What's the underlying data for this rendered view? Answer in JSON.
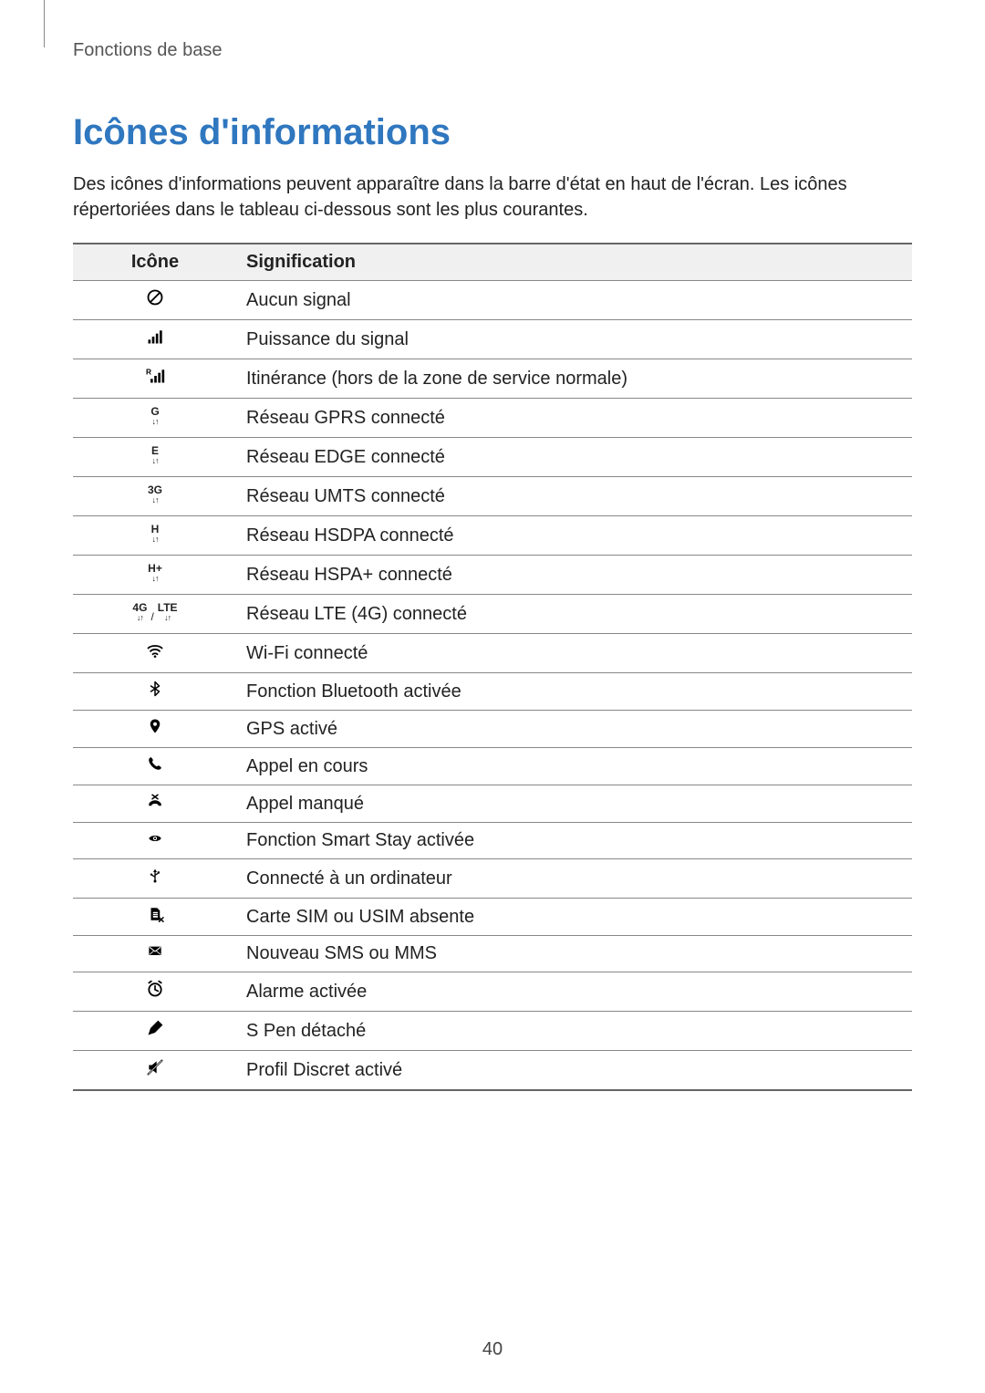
{
  "breadcrumb": "Fonctions de base",
  "page_title": "Icônes d'informations",
  "intro": "Des icônes d'informations peuvent apparaître dans la barre d'état en haut de l'écran. Les icônes répertoriées dans le tableau ci-dessous sont les plus courantes.",
  "page_number": "40",
  "colors": {
    "accent": "#2f77bf",
    "text": "#222222",
    "muted": "#555555",
    "table_header_bg": "#f0f0f0",
    "border": "#888888",
    "border_strong": "#666666",
    "icon": "#000000"
  },
  "table": {
    "columns": [
      "Icône",
      "Signification"
    ],
    "rows": [
      {
        "icon_name": "no-signal-icon",
        "label": "Aucun signal"
      },
      {
        "icon_name": "signal-icon",
        "label": "Puissance du signal"
      },
      {
        "icon_name": "roaming-icon",
        "label": "Itinérance (hors de la zone de service normale)"
      },
      {
        "icon_name": "gprs-icon",
        "label": "Réseau GPRS connecté"
      },
      {
        "icon_name": "edge-icon",
        "label": "Réseau EDGE connecté"
      },
      {
        "icon_name": "umts-icon",
        "label": "Réseau UMTS connecté"
      },
      {
        "icon_name": "hsdpa-icon",
        "label": "Réseau HSDPA connecté"
      },
      {
        "icon_name": "hspa-plus-icon",
        "label": "Réseau HSPA+ connecté"
      },
      {
        "icon_name": "lte-icon",
        "label": "Réseau LTE (4G) connecté"
      },
      {
        "icon_name": "wifi-icon",
        "label": "Wi-Fi connecté"
      },
      {
        "icon_name": "bluetooth-icon",
        "label": "Fonction Bluetooth activée"
      },
      {
        "icon_name": "gps-icon",
        "label": "GPS activé"
      },
      {
        "icon_name": "call-icon",
        "label": "Appel en cours"
      },
      {
        "icon_name": "missed-call-icon",
        "label": "Appel manqué"
      },
      {
        "icon_name": "smart-stay-icon",
        "label": "Fonction Smart Stay activée"
      },
      {
        "icon_name": "usb-icon",
        "label": "Connecté à un ordinateur"
      },
      {
        "icon_name": "no-sim-icon",
        "label": "Carte SIM ou USIM absente"
      },
      {
        "icon_name": "message-icon",
        "label": "Nouveau SMS ou MMS"
      },
      {
        "icon_name": "alarm-icon",
        "label": "Alarme activée"
      },
      {
        "icon_name": "s-pen-icon",
        "label": "S Pen détaché"
      },
      {
        "icon_name": "mute-icon",
        "label": "Profil Discret activé"
      }
    ]
  }
}
